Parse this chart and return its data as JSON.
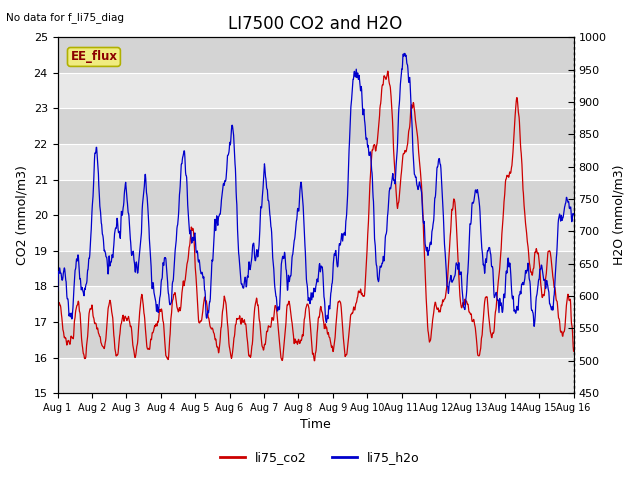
{
  "title": "LI7500 CO2 and H2O",
  "xlabel": "Time",
  "ylabel_left": "CO2 (mmol/m3)",
  "ylabel_right": "H2O (mmol/m3)",
  "ylim_left": [
    15.0,
    25.0
  ],
  "ylim_right": [
    450,
    1000
  ],
  "yticks_left": [
    15.0,
    16.0,
    17.0,
    18.0,
    19.0,
    20.0,
    21.0,
    22.0,
    23.0,
    24.0,
    25.0
  ],
  "yticks_right": [
    450,
    500,
    550,
    600,
    650,
    700,
    750,
    800,
    850,
    900,
    950,
    1000
  ],
  "xlim": [
    0,
    15
  ],
  "xtick_labels": [
    "Aug 1",
    "Aug 2",
    "Aug 3",
    "Aug 4",
    "Aug 5",
    "Aug 6",
    "Aug 7",
    "Aug 8",
    "Aug 9",
    "Aug 10",
    "Aug 11",
    "Aug 12",
    "Aug 13",
    "Aug 14",
    "Aug 15",
    "Aug 16"
  ],
  "xtick_positions": [
    0,
    1,
    2,
    3,
    4,
    5,
    6,
    7,
    8,
    9,
    10,
    11,
    12,
    13,
    14,
    15
  ],
  "color_co2": "#cc0000",
  "color_h2o": "#0000cc",
  "legend_labels": [
    "li75_co2",
    "li75_h2o"
  ],
  "annotation_topleft": "No data for f_li75_diag",
  "annotation_box": "EE_flux",
  "plot_bg_color": "#d4d4d4",
  "band_color": "#e8e8e8",
  "title_fontsize": 12,
  "axis_fontsize": 9,
  "tick_fontsize": 8
}
